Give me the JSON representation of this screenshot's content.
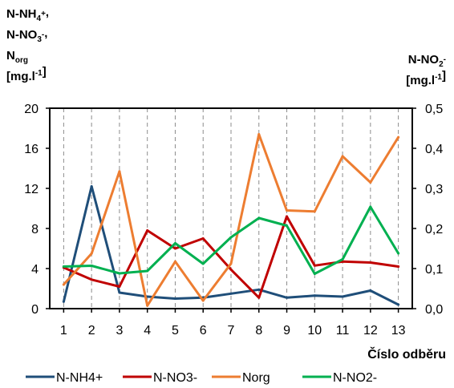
{
  "chart_data": {
    "type": "line",
    "left_axis_label_lines": [
      [
        {
          "t": "N-NH"
        },
        {
          "t": "4",
          "sub": true
        },
        {
          "t": "+",
          "sup": true
        },
        {
          "t": ","
        }
      ],
      [
        {
          "t": "N-NO"
        },
        {
          "t": "3",
          "sub": true
        },
        {
          "t": "-",
          "sup": true
        },
        {
          "t": ","
        }
      ],
      [
        {
          "t": "N"
        },
        {
          "t": "org",
          "sub": true
        }
      ],
      [
        {
          "t": "[mg.l"
        },
        {
          "t": "-1",
          "sup": true
        },
        {
          "t": "]"
        }
      ]
    ],
    "right_axis_label_lines": [
      [
        {
          "t": "N-NO"
        },
        {
          "t": "2",
          "sub": true
        },
        {
          "t": "-",
          "sup": true
        }
      ],
      [
        {
          "t": "[mg.l"
        },
        {
          "t": "-1",
          "sup": true
        },
        {
          "t": "]"
        }
      ]
    ],
    "xlabel": "Číslo odběru",
    "x": [
      1,
      2,
      3,
      4,
      5,
      6,
      7,
      8,
      9,
      10,
      11,
      12,
      13
    ],
    "ylim": [
      0,
      20
    ],
    "yticks": [
      0,
      4,
      8,
      12,
      16,
      20
    ],
    "y2lim": [
      0,
      0.5
    ],
    "y2ticks": [
      "0,0",
      "0,1",
      "0,2",
      "0,3",
      "0,4",
      "0,5"
    ],
    "grid": "vertical dashed",
    "legend_position": "bottom",
    "series": [
      {
        "name": "N-NH4+",
        "axis": "left",
        "color": "#1F4E79",
        "values": [
          0.7,
          12.2,
          1.6,
          1.2,
          1.0,
          1.1,
          1.5,
          1.9,
          1.1,
          1.3,
          1.2,
          1.8,
          0.4
        ]
      },
      {
        "name": "N-NO3-",
        "axis": "left",
        "color": "#C00000",
        "values": [
          4.1,
          2.9,
          2.2,
          7.8,
          6.0,
          7.0,
          3.9,
          1.1,
          9.2,
          4.3,
          4.7,
          4.6,
          4.2
        ]
      },
      {
        "name": "Norg",
        "axis": "left",
        "color": "#ED7D31",
        "values": [
          2.4,
          5.5,
          13.7,
          0.3,
          4.7,
          0.8,
          4.5,
          17.4,
          9.8,
          9.7,
          15.2,
          12.6,
          17.1
        ]
      },
      {
        "name": "N-NO2-",
        "axis": "right",
        "color": "#00B050",
        "values": [
          0.105,
          0.107,
          0.088,
          0.094,
          0.163,
          0.112,
          0.178,
          0.226,
          0.207,
          0.087,
          0.123,
          0.254,
          0.138
        ]
      }
    ]
  }
}
